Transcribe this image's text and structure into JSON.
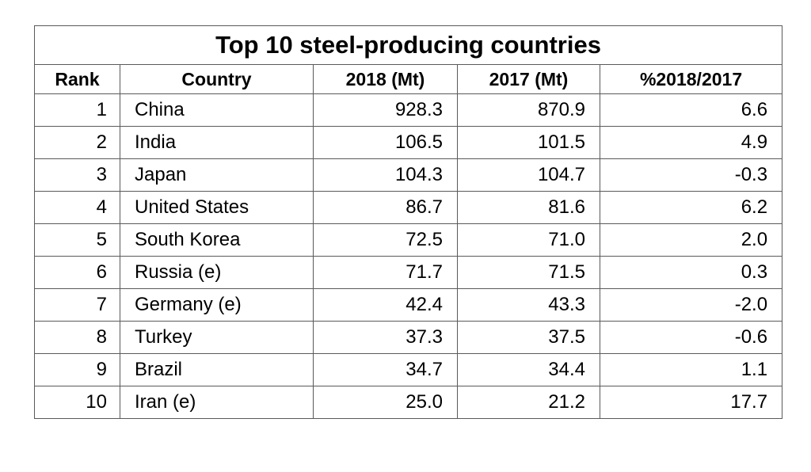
{
  "title": "Top 10 steel-producing countries",
  "columns": [
    "Rank",
    "Country",
    "2018 (Mt)",
    "2017 (Mt)",
    "%2018/2017"
  ],
  "rows": [
    {
      "rank": "1",
      "country": "China",
      "y2018": "928.3",
      "y2017": "870.9",
      "pct": "6.6"
    },
    {
      "rank": "2",
      "country": "India",
      "y2018": "106.5",
      "y2017": "101.5",
      "pct": "4.9"
    },
    {
      "rank": "3",
      "country": "Japan",
      "y2018": "104.3",
      "y2017": "104.7",
      "pct": "-0.3"
    },
    {
      "rank": "4",
      "country": "United States",
      "y2018": "86.7",
      "y2017": "81.6",
      "pct": "6.2"
    },
    {
      "rank": "5",
      "country": "South Korea",
      "y2018": "72.5",
      "y2017": "71.0",
      "pct": "2.0"
    },
    {
      "rank": "6",
      "country": "Russia (e)",
      "y2018": "71.7",
      "y2017": "71.5",
      "pct": "0.3"
    },
    {
      "rank": "7",
      "country": "Germany (e)",
      "y2018": "42.4",
      "y2017": "43.3",
      "pct": "-2.0"
    },
    {
      "rank": "8",
      "country": "Turkey",
      "y2018": "37.3",
      "y2017": "37.5",
      "pct": "-0.6"
    },
    {
      "rank": "9",
      "country": "Brazil",
      "y2018": "34.7",
      "y2017": "34.4",
      "pct": "1.1"
    },
    {
      "rank": "10",
      "country": "Iran (e)",
      "y2018": "25.0",
      "y2017": "21.2",
      "pct": "17.7"
    }
  ]
}
